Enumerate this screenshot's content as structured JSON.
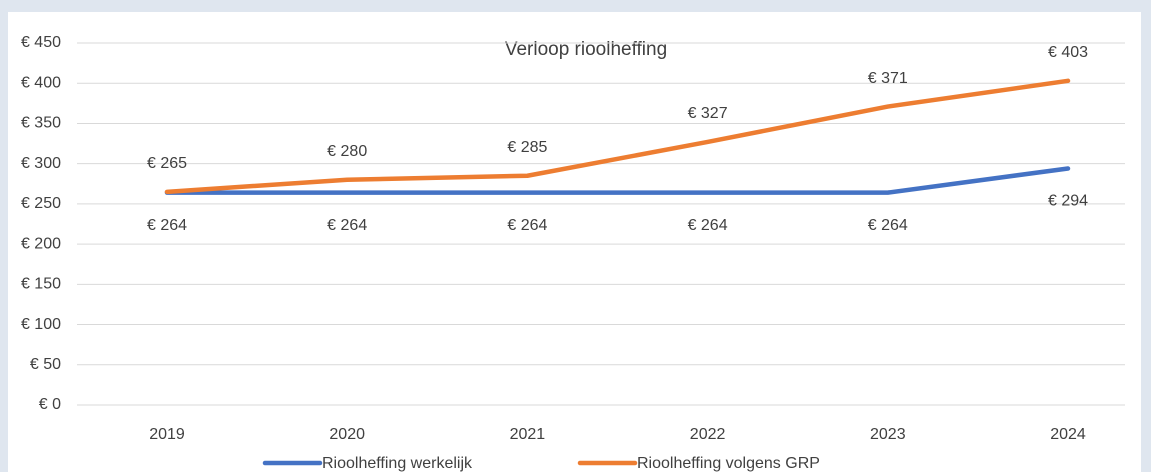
{
  "chart_data": {
    "type": "line",
    "title": "Verloop rioolheffing",
    "categories": [
      "2019",
      "2020",
      "2021",
      "2022",
      "2023",
      "2024"
    ],
    "series": [
      {
        "name": "Rioolheffing werkelijk",
        "color": "#4472c4",
        "values": [
          264,
          264,
          264,
          264,
          264,
          294
        ],
        "value_labels": [
          "€ 264",
          "€ 264",
          "€ 264",
          "€ 264",
          "€ 264",
          "€ 294"
        ]
      },
      {
        "name": "Rioolheffing volgens GRP",
        "color": "#ed7d31",
        "values": [
          265,
          280,
          285,
          327,
          371,
          403
        ],
        "value_labels": [
          "€ 265",
          "€ 280",
          "€ 285",
          "€ 327",
          "€ 371",
          "€ 403"
        ]
      }
    ],
    "ylim": [
      0,
      450
    ],
    "yticks": [
      {
        "value": 0,
        "label": "€ 0"
      },
      {
        "value": 50,
        "label": "€ 50"
      },
      {
        "value": 100,
        "label": "€ 100"
      },
      {
        "value": 150,
        "label": "€ 150"
      },
      {
        "value": 200,
        "label": "€ 200"
      },
      {
        "value": 250,
        "label": "€ 250"
      },
      {
        "value": 300,
        "label": "€ 300"
      },
      {
        "value": 350,
        "label": "€ 350"
      },
      {
        "value": 400,
        "label": "€ 400"
      },
      {
        "value": 450,
        "label": "€ 450"
      }
    ],
    "grid": true,
    "legend": "bottom"
  }
}
